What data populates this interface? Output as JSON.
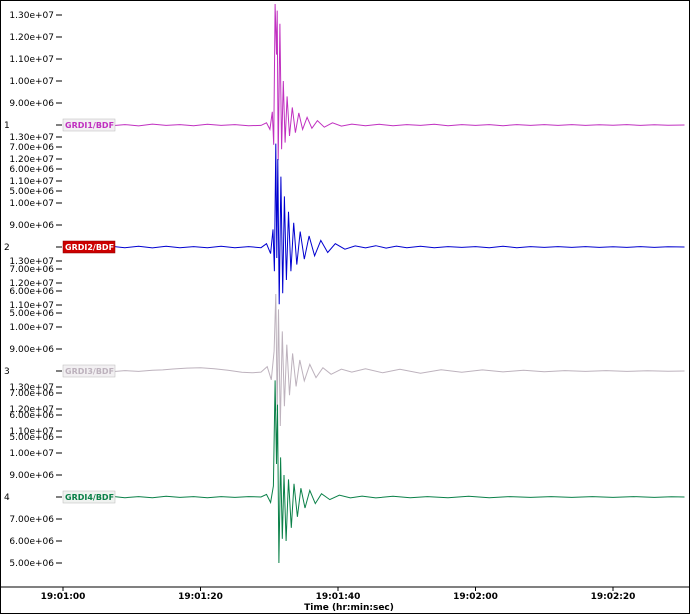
{
  "chart_data": {
    "type": "line",
    "title": "",
    "xlabel": "Time (hr:min:sec)",
    "x_unit": "seconds after 19:01:00",
    "x_range": [
      0,
      90.5
    ],
    "x_ticks": [
      {
        "t": 0,
        "label": "19:01:00"
      },
      {
        "t": 20,
        "label": "19:01:20"
      },
      {
        "t": 40,
        "label": "19:01:40"
      },
      {
        "t": 60,
        "label": "19:02:00"
      },
      {
        "t": 80,
        "label": "19:02:20"
      }
    ],
    "y_unit": "counts",
    "y_tick_labels": {
      "5": "5.00e+06",
      "6": "6.00e+06",
      "7": "7.00e+06",
      "8": "8.00e+06",
      "9": "9.00e+06",
      "10": "1.00e+07",
      "11": "1.10e+07",
      "12": "1.20e+07",
      "13": "1.30e+07"
    },
    "event_time_seconds": 31,
    "channels": [
      {
        "number": "1",
        "label": "GRDI1/BDF",
        "color": "#c030c0",
        "label_text_color": "#c030c0",
        "label_bg": "#f2f0f2",
        "selected": false,
        "baseline_value": 8.0,
        "y_tick_values": [
          13,
          12,
          11,
          10,
          9,
          8,
          7,
          6,
          5
        ],
        "points": [
          [
            3.2,
            8.0
          ],
          [
            5,
            8.03
          ],
          [
            7,
            7.97
          ],
          [
            9,
            8.02
          ],
          [
            11,
            7.96
          ],
          [
            13,
            8.04
          ],
          [
            15,
            7.98
          ],
          [
            17,
            8.02
          ],
          [
            19,
            7.97
          ],
          [
            21,
            8.03
          ],
          [
            23,
            7.98
          ],
          [
            25,
            8.02
          ],
          [
            27,
            7.97
          ],
          [
            28.8,
            7.98
          ],
          [
            29.6,
            8.1
          ],
          [
            30.1,
            7.8
          ],
          [
            30.45,
            8.6
          ],
          [
            30.65,
            7.1
          ],
          [
            30.85,
            13.5
          ],
          [
            31.05,
            11.2
          ],
          [
            31.15,
            13.2
          ],
          [
            31.3,
            6.4
          ],
          [
            31.55,
            12.6
          ],
          [
            31.8,
            6.9
          ],
          [
            32.05,
            10.0
          ],
          [
            32.3,
            7.2
          ],
          [
            32.6,
            9.3
          ],
          [
            32.95,
            7.5
          ],
          [
            33.35,
            8.8
          ],
          [
            33.8,
            7.65
          ],
          [
            34.3,
            8.55
          ],
          [
            34.85,
            7.8
          ],
          [
            35.5,
            8.35
          ],
          [
            36.2,
            7.85
          ],
          [
            37,
            8.2
          ],
          [
            38,
            7.9
          ],
          [
            39.2,
            8.1
          ],
          [
            40.5,
            7.95
          ],
          [
            42,
            8.04
          ],
          [
            44,
            7.97
          ],
          [
            46,
            8.03
          ],
          [
            48,
            7.97
          ],
          [
            50,
            8.02
          ],
          [
            52,
            7.98
          ],
          [
            54,
            8.03
          ],
          [
            56,
            7.97
          ],
          [
            58,
            8.02
          ],
          [
            60,
            7.98
          ],
          [
            62,
            8.02
          ],
          [
            64,
            7.97
          ],
          [
            66,
            8.02
          ],
          [
            68,
            7.98
          ],
          [
            70,
            8.02
          ],
          [
            72,
            7.98
          ],
          [
            74,
            8.02
          ],
          [
            76,
            7.98
          ],
          [
            78,
            8.01
          ],
          [
            80,
            7.99
          ],
          [
            82,
            8.02
          ],
          [
            84,
            7.98
          ],
          [
            86,
            8.01
          ],
          [
            88,
            7.99
          ],
          [
            90.4,
            8.0
          ]
        ]
      },
      {
        "number": "2",
        "label": "GRDI2/BDF",
        "color": "#0000d0",
        "label_text_color": "#ffffff",
        "label_bg": "#cc0000",
        "selected": true,
        "baseline_value": 8.0,
        "y_tick_values": [
          13,
          12,
          11,
          10,
          9,
          8,
          7,
          6,
          5
        ],
        "points": [
          [
            3.2,
            8.0
          ],
          [
            5,
            7.97
          ],
          [
            7,
            8.03
          ],
          [
            9,
            7.97
          ],
          [
            11,
            8.03
          ],
          [
            13,
            7.96
          ],
          [
            15,
            8.03
          ],
          [
            17,
            7.97
          ],
          [
            19,
            8.02
          ],
          [
            21,
            7.97
          ],
          [
            23,
            8.03
          ],
          [
            25,
            7.97
          ],
          [
            27,
            8.02
          ],
          [
            28.8,
            7.97
          ],
          [
            29.6,
            8.15
          ],
          [
            30.2,
            7.7
          ],
          [
            30.55,
            8.8
          ],
          [
            30.75,
            6.9
          ],
          [
            30.95,
            12.7
          ],
          [
            31.1,
            7.5
          ],
          [
            31.25,
            12.0
          ],
          [
            31.45,
            5.4
          ],
          [
            31.7,
            11.2
          ],
          [
            31.95,
            5.9
          ],
          [
            32.2,
            10.3
          ],
          [
            32.5,
            6.5
          ],
          [
            32.8,
            9.6
          ],
          [
            33.15,
            6.9
          ],
          [
            33.55,
            9.1
          ],
          [
            34,
            7.2
          ],
          [
            34.5,
            8.7
          ],
          [
            35.1,
            7.45
          ],
          [
            35.8,
            8.5
          ],
          [
            36.6,
            7.6
          ],
          [
            37.5,
            8.3
          ],
          [
            38.5,
            7.75
          ],
          [
            39.6,
            8.15
          ],
          [
            41,
            7.9
          ],
          [
            42.5,
            8.05
          ],
          [
            44,
            7.96
          ],
          [
            45.5,
            8.06
          ],
          [
            47,
            7.95
          ],
          [
            48.5,
            8.04
          ],
          [
            50,
            7.97
          ],
          [
            52,
            8.03
          ],
          [
            54,
            7.97
          ],
          [
            56,
            8.02
          ],
          [
            58,
            7.98
          ],
          [
            60,
            8.02
          ],
          [
            62,
            7.97
          ],
          [
            64,
            8.03
          ],
          [
            66,
            7.97
          ],
          [
            68,
            8.02
          ],
          [
            70,
            7.98
          ],
          [
            72,
            8.02
          ],
          [
            74,
            7.98
          ],
          [
            76,
            8.02
          ],
          [
            78,
            7.98
          ],
          [
            80,
            8.01
          ],
          [
            82,
            7.98
          ],
          [
            84,
            8.02
          ],
          [
            86,
            7.98
          ],
          [
            88,
            8.01
          ],
          [
            90.4,
            8.0
          ]
        ]
      },
      {
        "number": "3",
        "label": "GRDI3/BDF",
        "color": "#bdb2bd",
        "label_text_color": "#bdb2bd",
        "label_bg": "#f2f0f2",
        "selected": false,
        "baseline_value": 8.0,
        "y_tick_values": [
          13,
          12,
          11,
          10,
          9,
          8,
          7,
          6,
          5
        ],
        "points": [
          [
            3.2,
            8.0
          ],
          [
            5,
            8.02
          ],
          [
            7,
            7.97
          ],
          [
            9,
            8.02
          ],
          [
            11,
            7.98
          ],
          [
            13,
            8.03
          ],
          [
            14.5,
            8.05
          ],
          [
            16,
            8.09
          ],
          [
            18,
            8.13
          ],
          [
            20,
            8.15
          ],
          [
            22,
            8.1
          ],
          [
            24,
            8.03
          ],
          [
            26,
            7.94
          ],
          [
            27.5,
            7.92
          ],
          [
            28.8,
            7.95
          ],
          [
            29.7,
            8.2
          ],
          [
            30.3,
            7.6
          ],
          [
            30.7,
            8.9
          ],
          [
            30.95,
            11.5
          ],
          [
            31.15,
            6.2
          ],
          [
            31.35,
            10.8
          ],
          [
            31.6,
            5.5
          ],
          [
            31.9,
            9.8
          ],
          [
            32.2,
            6.4
          ],
          [
            32.55,
            9.2
          ],
          [
            32.95,
            6.9
          ],
          [
            33.4,
            8.8
          ],
          [
            33.9,
            7.3
          ],
          [
            34.45,
            8.5
          ],
          [
            35.1,
            7.55
          ],
          [
            35.9,
            8.3
          ],
          [
            36.8,
            7.7
          ],
          [
            37.8,
            8.15
          ],
          [
            39,
            7.85
          ],
          [
            40.5,
            8.08
          ],
          [
            42,
            7.95
          ],
          [
            44,
            8.1
          ],
          [
            46.5,
            7.92
          ],
          [
            49,
            8.08
          ],
          [
            52,
            7.9
          ],
          [
            55,
            8.06
          ],
          [
            58,
            7.94
          ],
          [
            61,
            8.05
          ],
          [
            64,
            7.96
          ],
          [
            67,
            8.03
          ],
          [
            70,
            7.97
          ],
          [
            73,
            8.02
          ],
          [
            76,
            7.98
          ],
          [
            79,
            8.02
          ],
          [
            82,
            7.98
          ],
          [
            85,
            8.01
          ],
          [
            88,
            7.99
          ],
          [
            90.4,
            8.0
          ]
        ]
      },
      {
        "number": "4",
        "label": "GRDI4/BDF",
        "color": "#0a8048",
        "label_text_color": "#0a8048",
        "label_bg": "#f0f2f0",
        "selected": false,
        "baseline_value": 8.0,
        "y_tick_values": [
          13,
          12,
          11,
          10,
          9,
          8,
          7,
          6,
          5
        ],
        "points": [
          [
            3.2,
            8.0
          ],
          [
            5,
            7.98
          ],
          [
            7,
            8.03
          ],
          [
            9,
            7.97
          ],
          [
            11,
            8.02
          ],
          [
            13,
            7.97
          ],
          [
            15,
            8.03
          ],
          [
            17,
            7.98
          ],
          [
            19,
            8.02
          ],
          [
            21,
            7.97
          ],
          [
            23,
            8.02
          ],
          [
            25,
            7.98
          ],
          [
            27,
            8.02
          ],
          [
            28.8,
            8.0
          ],
          [
            29.6,
            8.12
          ],
          [
            30.2,
            7.75
          ],
          [
            30.6,
            8.5
          ],
          [
            30.85,
            13.3
          ],
          [
            31.05,
            9.5
          ],
          [
            31.2,
            12.2
          ],
          [
            31.4,
            5.0
          ],
          [
            31.65,
            9.8
          ],
          [
            31.9,
            6.1
          ],
          [
            32.15,
            9.0
          ],
          [
            32.45,
            6.0
          ],
          [
            32.8,
            8.8
          ],
          [
            33.2,
            6.6
          ],
          [
            33.6,
            8.6
          ],
          [
            34.1,
            7.1
          ],
          [
            34.6,
            8.4
          ],
          [
            35.2,
            7.5
          ],
          [
            35.9,
            8.3
          ],
          [
            36.7,
            7.7
          ],
          [
            37.6,
            8.15
          ],
          [
            38.8,
            7.88
          ],
          [
            40.2,
            8.08
          ],
          [
            41.8,
            7.96
          ],
          [
            43.5,
            8.04
          ],
          [
            45.5,
            7.96
          ],
          [
            48,
            8.03
          ],
          [
            50.5,
            7.97
          ],
          [
            53,
            8.02
          ],
          [
            56,
            7.97
          ],
          [
            59,
            8.03
          ],
          [
            62,
            7.97
          ],
          [
            65,
            8.02
          ],
          [
            68,
            7.98
          ],
          [
            71,
            8.02
          ],
          [
            74,
            7.98
          ],
          [
            77,
            8.02
          ],
          [
            80,
            7.98
          ],
          [
            83,
            8.02
          ],
          [
            86,
            7.98
          ],
          [
            88.5,
            8.01
          ],
          [
            90.4,
            8.0
          ]
        ]
      }
    ]
  }
}
